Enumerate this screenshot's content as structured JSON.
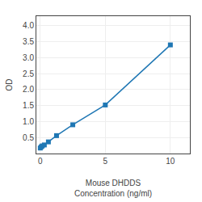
{
  "chart_data": {
    "type": "line",
    "x": [
      0.0,
      0.078,
      0.156,
      0.313,
      0.625,
      1.25,
      2.5,
      5.0,
      10.0
    ],
    "values": [
      0.172,
      0.21,
      0.238,
      0.268,
      0.364,
      0.56,
      0.9,
      1.52,
      3.4
    ],
    "xlabel": "Mouse DHDDS\nConcentration (ng/ml)",
    "ylabel": "OD",
    "xlim": [
      -0.3,
      11.5
    ],
    "ylim": [
      0.0,
      4.3
    ],
    "xticks": [
      0,
      5,
      10
    ],
    "yticks": [
      0.5,
      {
        "value": 1.0,
        "label": "1.0"
      },
      1.5,
      {
        "value": 2.0,
        "label": "2.0"
      },
      2.5,
      {
        "value": 3.0,
        "label": "3.0"
      },
      3.5,
      {
        "value": 4.0,
        "label": "4.0"
      }
    ],
    "grid": true,
    "marker": "square"
  }
}
